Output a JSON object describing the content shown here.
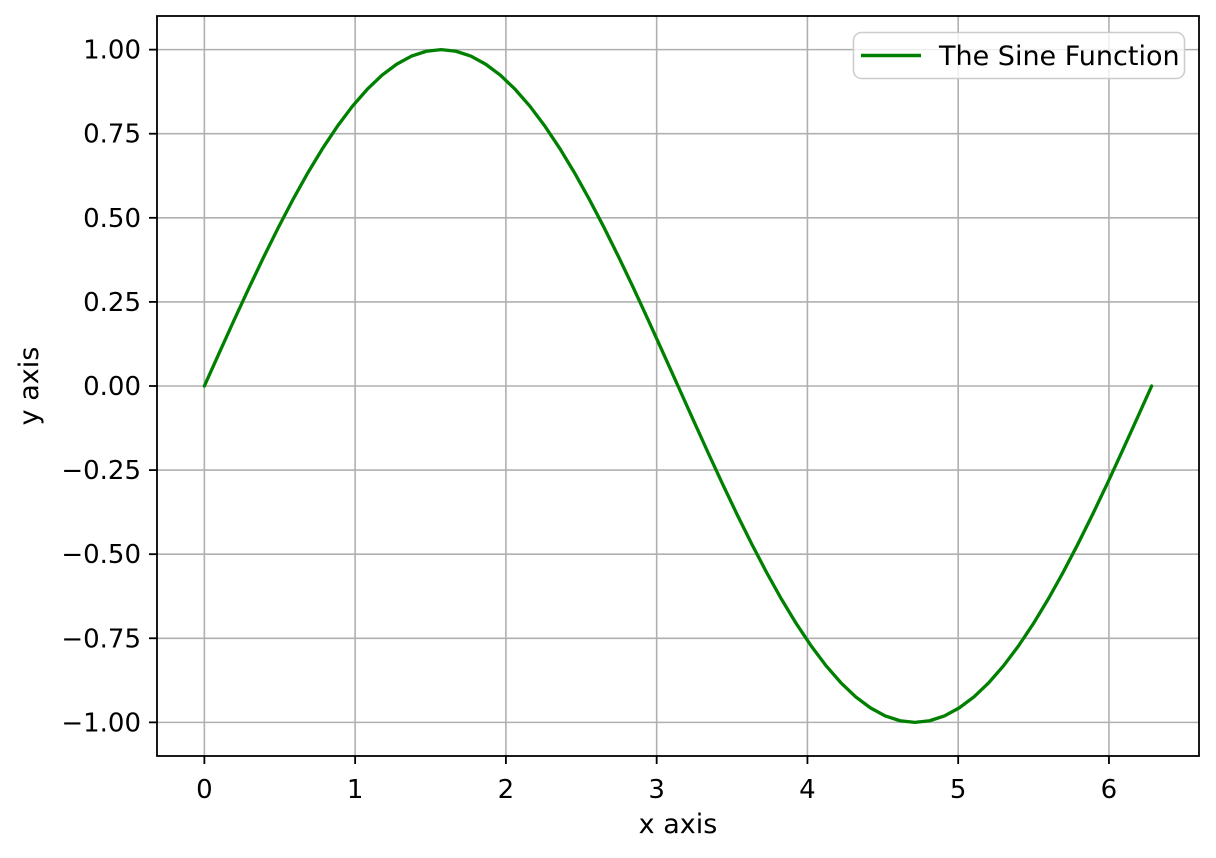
{
  "figure": {
    "background": "#ffffff"
  },
  "chart_data": {
    "type": "line",
    "title": "",
    "xlabel": "x axis",
    "ylabel": "y axis",
    "xlim": [
      -0.3142,
      6.5973
    ],
    "ylim": [
      -1.1,
      1.1
    ],
    "grid": true,
    "legend": {
      "position": "upper right",
      "entries": [
        {
          "label": "The Sine Function",
          "color": "#008000"
        }
      ]
    },
    "x_ticks": [
      0,
      1,
      2,
      3,
      4,
      5,
      6
    ],
    "x_tick_labels": [
      "0",
      "1",
      "2",
      "3",
      "4",
      "5",
      "6"
    ],
    "y_ticks": [
      -1.0,
      -0.75,
      -0.5,
      -0.25,
      0.0,
      0.25,
      0.5,
      0.75,
      1.0
    ],
    "y_tick_labels": [
      "−1.00",
      "−0.75",
      "−0.50",
      "−0.25",
      "0.00",
      "0.25",
      "0.50",
      "0.75",
      "1.00"
    ],
    "colors": {
      "line": "#008000",
      "grid": "#b0b0b0",
      "spine": "#000000",
      "text": "#000000",
      "legend_border": "#cccccc"
    },
    "series": [
      {
        "name": "The Sine Function",
        "color": "#008000",
        "x": [
          0.0,
          0.0982,
          0.1963,
          0.2945,
          0.3927,
          0.4909,
          0.589,
          0.6872,
          0.7854,
          0.8836,
          0.9817,
          1.0799,
          1.1781,
          1.2763,
          1.3744,
          1.4726,
          1.5708,
          1.669,
          1.7671,
          1.8653,
          1.9635,
          2.0617,
          2.1598,
          2.258,
          2.3562,
          2.4544,
          2.5525,
          2.6507,
          2.7489,
          2.8471,
          2.9452,
          3.0434,
          3.1416,
          3.2398,
          3.3379,
          3.4361,
          3.5343,
          3.6325,
          3.7306,
          3.8288,
          3.927,
          4.0252,
          4.1233,
          4.2215,
          4.3197,
          4.4179,
          4.516,
          4.6142,
          4.7124,
          4.8106,
          4.9087,
          5.0069,
          5.1051,
          5.2033,
          5.3014,
          5.3996,
          5.4978,
          5.596,
          5.6941,
          5.7923,
          5.8905,
          5.9887,
          6.0868,
          6.185,
          6.2832
        ],
        "y": [
          0.0,
          0.098,
          0.1951,
          0.2903,
          0.3827,
          0.4714,
          0.5556,
          0.6344,
          0.7071,
          0.773,
          0.8315,
          0.8819,
          0.9239,
          0.9569,
          0.9808,
          0.9952,
          1.0,
          0.9952,
          0.9808,
          0.9569,
          0.9239,
          0.8819,
          0.8315,
          0.773,
          0.7071,
          0.6344,
          0.5556,
          0.4714,
          0.3827,
          0.2903,
          0.1951,
          0.098,
          0.0,
          -0.098,
          -0.1951,
          -0.2903,
          -0.3827,
          -0.4714,
          -0.5556,
          -0.6344,
          -0.7071,
          -0.773,
          -0.8315,
          -0.8819,
          -0.9239,
          -0.9569,
          -0.9808,
          -0.9952,
          -1.0,
          -0.9952,
          -0.9808,
          -0.9569,
          -0.9239,
          -0.8819,
          -0.8315,
          -0.773,
          -0.7071,
          -0.6344,
          -0.5556,
          -0.4714,
          -0.3827,
          -0.2903,
          -0.1951,
          -0.098,
          0.0
        ]
      }
    ]
  }
}
